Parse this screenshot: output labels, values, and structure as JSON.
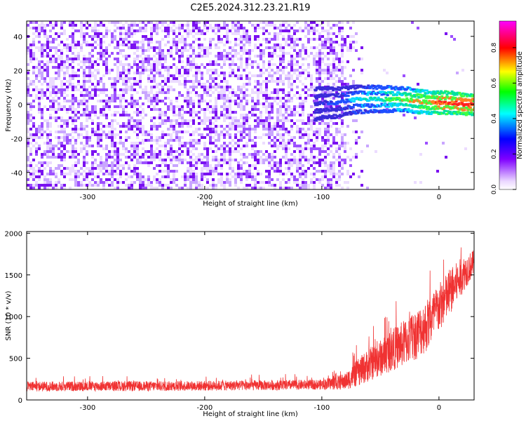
{
  "title": "C2E5.2024.312.23.21.R19",
  "chart_data": [
    {
      "type": "heatmap",
      "xlabel": "Height of straight line (km)",
      "ylabel": "Frequency (Hz)",
      "xlim": [
        -352,
        30
      ],
      "ylim": [
        -50,
        49
      ],
      "xticks": [
        -300,
        -200,
        -100,
        0
      ],
      "yticks": [
        -40,
        -20,
        0,
        20,
        40
      ],
      "grid": false,
      "noise_region_x": [
        -352,
        -82
      ],
      "noise_fade_x": [
        -82,
        -60
      ],
      "signal_track": {
        "x": [
          -107,
          -100,
          -90,
          -80,
          -70,
          -60,
          -50,
          -40,
          -30,
          -20,
          -10,
          0,
          10,
          20,
          30
        ],
        "freq": [
          0,
          1,
          1,
          2,
          3,
          3,
          3,
          3,
          3,
          2,
          1,
          1,
          1,
          0,
          0
        ],
        "amplitude": [
          0.15,
          0.2,
          0.3,
          0.4,
          0.45,
          0.5,
          0.55,
          0.6,
          0.65,
          0.7,
          0.75,
          0.8,
          0.8,
          0.85,
          0.85
        ]
      },
      "colorbar": {
        "label": "Normalized spectral amplitude",
        "range": [
          0,
          0.95
        ],
        "ticks": [
          0.0,
          0.2,
          0.4,
          0.6,
          0.8
        ],
        "tick_labels": [
          "0.0",
          "0.2",
          "0.4",
          "0.6",
          "0.8"
        ],
        "colors": [
          "#ffffff",
          "#7f00ff",
          "#0000ff",
          "#00ffff",
          "#00ff00",
          "#ffff00",
          "#ff0000",
          "#ff00ff"
        ]
      }
    },
    {
      "type": "line",
      "xlabel": "Height of straight line (km)",
      "ylabel": "SNR (10 * v/v)",
      "xlim": [
        -352,
        30
      ],
      "ylim": [
        0,
        2020
      ],
      "xticks": [
        -300,
        -200,
        -100,
        0
      ],
      "yticks": [
        0,
        500,
        1000,
        1500,
        2000
      ],
      "grid": false,
      "series": [
        {
          "color": "#f03232",
          "envelope_x": [
            -352,
            -300,
            -250,
            -200,
            -150,
            -100,
            -80,
            -70,
            -60,
            -50,
            -40,
            -30,
            -20,
            -10,
            0,
            10,
            20,
            30
          ],
          "envelope_mean": [
            160,
            165,
            165,
            170,
            175,
            185,
            220,
            320,
            420,
            500,
            600,
            680,
            780,
            900,
            1100,
            1300,
            1500,
            1650
          ],
          "envelope_spread": [
            60,
            60,
            60,
            60,
            60,
            60,
            100,
            160,
            200,
            220,
            250,
            280,
            300,
            320,
            300,
            280,
            220,
            150
          ]
        }
      ]
    }
  ]
}
